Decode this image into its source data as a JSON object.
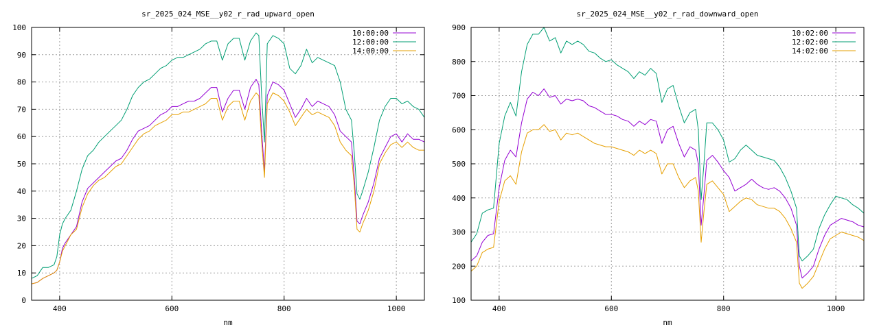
{
  "chart_data": [
    {
      "type": "line",
      "title": "sr_2025_024_MSE__y02_r_rad_upward_open",
      "xlabel": "nm",
      "ylabel": "",
      "xlim": [
        350,
        1050
      ],
      "ylim": [
        0,
        100
      ],
      "xticks": [
        400,
        600,
        800,
        1000
      ],
      "yticks": [
        0,
        10,
        20,
        30,
        40,
        50,
        60,
        70,
        80,
        90,
        100
      ],
      "grid": true,
      "legend_position": "top-right",
      "series": [
        {
          "name": "10:00:00",
          "color": "#9400d3",
          "x": [
            350,
            360,
            370,
            380,
            390,
            395,
            400,
            405,
            410,
            420,
            430,
            440,
            450,
            460,
            470,
            480,
            490,
            500,
            510,
            520,
            530,
            540,
            550,
            560,
            570,
            580,
            590,
            600,
            610,
            620,
            630,
            640,
            650,
            660,
            670,
            680,
            690,
            700,
            710,
            720,
            730,
            740,
            750,
            755,
            760,
            765,
            770,
            780,
            790,
            800,
            810,
            820,
            830,
            840,
            850,
            860,
            870,
            880,
            890,
            900,
            910,
            915,
            920,
            925,
            930,
            935,
            940,
            950,
            960,
            970,
            980,
            990,
            1000,
            1010,
            1020,
            1030,
            1040,
            1050
          ],
          "y": [
            6,
            6.5,
            8,
            9,
            10,
            11,
            14,
            19,
            21,
            24,
            27,
            36,
            41,
            43,
            45,
            47,
            49,
            51,
            52,
            55,
            59,
            62,
            63,
            64,
            66,
            68,
            69,
            71,
            71,
            72,
            73,
            73,
            74,
            76,
            78,
            78,
            69,
            74,
            77,
            77,
            70,
            78,
            81,
            79,
            62,
            47,
            75,
            80,
            79,
            77,
            72,
            67,
            70,
            74,
            71,
            73,
            72,
            71,
            68,
            62,
            60,
            59,
            58,
            45,
            29,
            28,
            31,
            36,
            43,
            52,
            56,
            60,
            61,
            58,
            61,
            59,
            59,
            58
          ]
        },
        {
          "name": "12:00:00",
          "color": "#009e73",
          "x": [
            350,
            360,
            370,
            380,
            390,
            395,
            400,
            405,
            410,
            420,
            430,
            440,
            450,
            460,
            470,
            480,
            490,
            500,
            510,
            520,
            530,
            540,
            550,
            560,
            570,
            580,
            590,
            600,
            610,
            620,
            630,
            640,
            650,
            660,
            670,
            680,
            690,
            700,
            710,
            720,
            730,
            740,
            750,
            755,
            760,
            765,
            770,
            780,
            790,
            800,
            810,
            820,
            830,
            840,
            850,
            860,
            870,
            880,
            890,
            900,
            910,
            915,
            920,
            925,
            930,
            935,
            940,
            950,
            960,
            970,
            980,
            990,
            1000,
            1010,
            1020,
            1030,
            1040,
            1050
          ],
          "y": [
            8,
            9,
            12,
            12,
            13,
            16,
            24,
            28,
            30,
            33,
            40,
            48,
            53,
            55,
            58,
            60,
            62,
            64,
            66,
            70,
            75,
            78,
            80,
            81,
            83,
            85,
            86,
            88,
            89,
            89,
            90,
            91,
            92,
            94,
            95,
            95,
            88,
            94,
            96,
            96,
            88,
            95,
            98,
            97,
            75,
            58,
            94,
            97,
            96,
            94,
            85,
            83,
            86,
            92,
            87,
            89,
            88,
            87,
            86,
            80,
            70,
            68,
            66,
            54,
            39,
            37,
            40,
            47,
            56,
            66,
            71,
            74,
            74,
            72,
            73,
            71,
            70,
            67
          ]
        },
        {
          "name": "14:00:00",
          "color": "#e69f00",
          "x": [
            350,
            360,
            370,
            380,
            390,
            395,
            400,
            405,
            410,
            420,
            430,
            440,
            450,
            460,
            470,
            480,
            490,
            500,
            510,
            520,
            530,
            540,
            550,
            560,
            570,
            580,
            590,
            600,
            610,
            620,
            630,
            640,
            650,
            660,
            670,
            680,
            690,
            700,
            710,
            720,
            730,
            740,
            750,
            755,
            760,
            765,
            770,
            780,
            790,
            800,
            810,
            820,
            830,
            840,
            850,
            860,
            870,
            880,
            890,
            900,
            910,
            915,
            920,
            925,
            930,
            935,
            940,
            950,
            960,
            970,
            980,
            990,
            1000,
            1010,
            1020,
            1030,
            1040,
            1050
          ],
          "y": [
            6,
            6.5,
            8,
            9,
            10,
            11,
            14,
            18,
            20,
            24,
            26,
            34,
            39,
            42,
            44,
            45,
            47,
            49,
            50,
            53,
            56,
            59,
            61,
            62,
            64,
            65,
            66,
            68,
            68,
            69,
            69,
            70,
            71,
            72,
            74,
            74,
            66,
            71,
            73,
            73,
            66,
            73,
            76,
            75,
            58,
            45,
            72,
            76,
            75,
            73,
            69,
            64,
            67,
            70,
            68,
            69,
            68,
            67,
            64,
            58,
            55,
            54,
            53,
            42,
            26,
            25,
            28,
            33,
            40,
            50,
            54,
            57,
            58,
            56,
            58,
            56,
            55,
            55
          ]
        }
      ]
    },
    {
      "type": "line",
      "title": "sr_2025_024_MSE__y02_r_rad_downward_open",
      "xlabel": "nm",
      "ylabel": "",
      "xlim": [
        350,
        1050
      ],
      "ylim": [
        100,
        900
      ],
      "xticks": [
        400,
        600,
        800,
        1000
      ],
      "yticks": [
        100,
        200,
        300,
        400,
        500,
        600,
        700,
        800,
        900
      ],
      "grid": true,
      "legend_position": "top-right",
      "series": [
        {
          "name": "10:02:00",
          "color": "#9400d3",
          "x": [
            350,
            360,
            370,
            380,
            390,
            400,
            410,
            420,
            430,
            440,
            450,
            460,
            470,
            480,
            490,
            500,
            510,
            520,
            530,
            540,
            550,
            560,
            570,
            580,
            590,
            600,
            610,
            620,
            630,
            640,
            650,
            660,
            670,
            680,
            690,
            700,
            710,
            720,
            730,
            740,
            750,
            755,
            760,
            765,
            770,
            780,
            790,
            800,
            810,
            820,
            830,
            840,
            850,
            860,
            870,
            880,
            890,
            900,
            910,
            920,
            930,
            935,
            940,
            950,
            960,
            970,
            980,
            990,
            1000,
            1010,
            1020,
            1030,
            1040,
            1050
          ],
          "y": [
            215,
            230,
            270,
            290,
            295,
            430,
            510,
            540,
            520,
            620,
            690,
            710,
            700,
            720,
            695,
            700,
            675,
            690,
            685,
            690,
            685,
            670,
            665,
            655,
            645,
            645,
            640,
            630,
            625,
            610,
            625,
            615,
            630,
            625,
            560,
            600,
            610,
            560,
            520,
            550,
            540,
            500,
            320,
            410,
            510,
            525,
            505,
            480,
            460,
            420,
            430,
            440,
            455,
            440,
            430,
            425,
            430,
            420,
            400,
            370,
            320,
            200,
            165,
            180,
            200,
            250,
            290,
            320,
            330,
            340,
            335,
            330,
            320,
            315
          ]
        },
        {
          "name": "12:02:00",
          "color": "#009e73",
          "x": [
            350,
            360,
            370,
            380,
            390,
            400,
            410,
            420,
            430,
            440,
            450,
            460,
            470,
            480,
            490,
            500,
            510,
            520,
            530,
            540,
            550,
            560,
            570,
            580,
            590,
            600,
            610,
            620,
            630,
            640,
            650,
            660,
            670,
            680,
            690,
            700,
            710,
            720,
            730,
            740,
            750,
            755,
            760,
            765,
            770,
            780,
            790,
            800,
            810,
            820,
            830,
            840,
            850,
            860,
            870,
            880,
            890,
            900,
            910,
            920,
            930,
            935,
            940,
            950,
            960,
            970,
            980,
            990,
            1000,
            1010,
            1020,
            1030,
            1040,
            1050
          ],
          "y": [
            270,
            295,
            355,
            365,
            370,
            560,
            640,
            680,
            640,
            770,
            850,
            880,
            880,
            900,
            860,
            870,
            825,
            860,
            850,
            860,
            850,
            830,
            825,
            810,
            800,
            805,
            790,
            780,
            770,
            750,
            770,
            760,
            780,
            765,
            680,
            720,
            730,
            670,
            620,
            650,
            660,
            600,
            395,
            500,
            620,
            620,
            600,
            570,
            505,
            515,
            540,
            555,
            540,
            525,
            520,
            515,
            510,
            490,
            460,
            420,
            370,
            230,
            215,
            230,
            250,
            310,
            350,
            380,
            405,
            400,
            395,
            380,
            370,
            355
          ]
        },
        {
          "name": "14:02:00",
          "color": "#e69f00",
          "x": [
            350,
            360,
            370,
            380,
            390,
            400,
            410,
            420,
            430,
            440,
            450,
            460,
            470,
            480,
            490,
            500,
            510,
            520,
            530,
            540,
            550,
            560,
            570,
            580,
            590,
            600,
            610,
            620,
            630,
            640,
            650,
            660,
            670,
            680,
            690,
            700,
            710,
            720,
            730,
            740,
            750,
            755,
            760,
            765,
            770,
            780,
            790,
            800,
            810,
            820,
            830,
            840,
            850,
            860,
            870,
            880,
            890,
            900,
            910,
            920,
            930,
            935,
            940,
            950,
            960,
            970,
            980,
            990,
            1000,
            1010,
            1020,
            1030,
            1040,
            1050
          ],
          "y": [
            185,
            200,
            240,
            250,
            255,
            390,
            450,
            465,
            440,
            535,
            590,
            600,
            600,
            615,
            595,
            600,
            570,
            590,
            585,
            590,
            580,
            570,
            560,
            555,
            550,
            550,
            545,
            540,
            535,
            525,
            540,
            530,
            540,
            530,
            470,
            500,
            500,
            460,
            430,
            450,
            460,
            420,
            270,
            360,
            440,
            450,
            430,
            410,
            360,
            375,
            390,
            400,
            395,
            380,
            375,
            370,
            370,
            360,
            340,
            310,
            270,
            150,
            135,
            150,
            170,
            210,
            250,
            280,
            290,
            300,
            295,
            290,
            285,
            275
          ]
        }
      ]
    }
  ]
}
